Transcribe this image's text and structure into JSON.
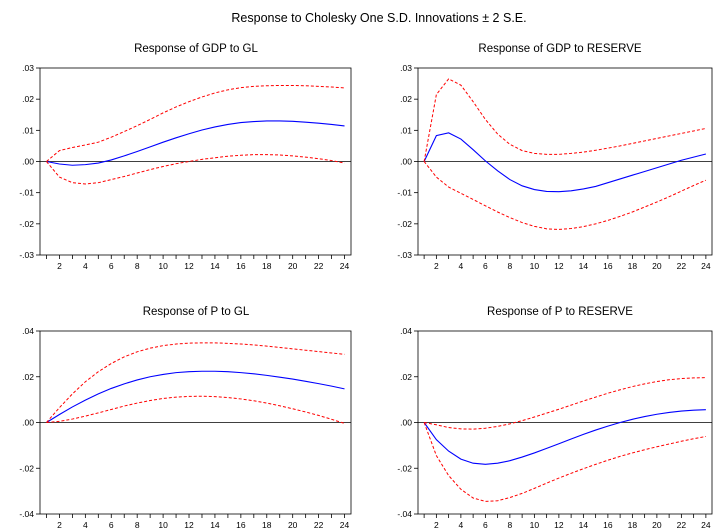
{
  "figure_title": "Response to Cholesky One S.D. Innovations ± 2 S.E.",
  "colors": {
    "response": "#0000ff",
    "band": "#ff0000",
    "axis": "#000000"
  },
  "chart_data": [
    {
      "type": "line",
      "title": "Response of GDP to GL",
      "ylim": [
        -0.03,
        0.03
      ],
      "yticks": [
        ".03",
        ".02",
        ".01",
        ".00",
        "-.01",
        "-.02",
        "-.03"
      ],
      "yticks_values": [
        0.03,
        0.02,
        0.01,
        0.0,
        -0.01,
        -0.02,
        -0.03
      ],
      "xlim": [
        0.5,
        24.5
      ],
      "xticks": [
        "2",
        "4",
        "6",
        "8",
        "10",
        "12",
        "14",
        "16",
        "18",
        "20",
        "22",
        "24"
      ],
      "x": [
        1,
        2,
        3,
        4,
        5,
        6,
        7,
        8,
        9,
        10,
        11,
        12,
        13,
        14,
        15,
        16,
        17,
        18,
        19,
        20,
        21,
        22,
        23,
        24
      ],
      "series": [
        {
          "role": "response",
          "values": [
            0.0,
            -0.0008,
            -0.0012,
            -0.001,
            -0.0005,
            0.0005,
            0.0018,
            0.0032,
            0.0047,
            0.0062,
            0.0076,
            0.0089,
            0.0101,
            0.0111,
            0.0119,
            0.0125,
            0.0128,
            0.013,
            0.013,
            0.0129,
            0.0126,
            0.0123,
            0.0119,
            0.0114
          ]
        },
        {
          "role": "upper",
          "values": [
            0.0,
            0.0035,
            0.0045,
            0.0053,
            0.0062,
            0.0078,
            0.0096,
            0.0115,
            0.0135,
            0.0156,
            0.0175,
            0.0192,
            0.0207,
            0.022,
            0.023,
            0.0237,
            0.0241,
            0.0243,
            0.0244,
            0.0244,
            0.0243,
            0.0241,
            0.0239,
            0.0236
          ]
        },
        {
          "role": "lower",
          "values": [
            0.0,
            -0.005,
            -0.0068,
            -0.0072,
            -0.0068,
            -0.0058,
            -0.0048,
            -0.0037,
            -0.0026,
            -0.0016,
            -0.0007,
            0.0,
            0.0007,
            0.0012,
            0.0017,
            0.002,
            0.0022,
            0.0022,
            0.0021,
            0.0018,
            0.0014,
            0.0009,
            0.0003,
            -0.0005
          ]
        }
      ]
    },
    {
      "type": "line",
      "title": "Response of GDP to RESERVE",
      "ylim": [
        -0.03,
        0.03
      ],
      "yticks": [
        ".03",
        ".02",
        ".01",
        ".00",
        "-.01",
        "-.02",
        "-.03"
      ],
      "yticks_values": [
        0.03,
        0.02,
        0.01,
        0.0,
        -0.01,
        -0.02,
        -0.03
      ],
      "xlim": [
        0.5,
        24.5
      ],
      "xticks": [
        "2",
        "4",
        "6",
        "8",
        "10",
        "12",
        "14",
        "16",
        "18",
        "20",
        "22",
        "24"
      ],
      "x": [
        1,
        2,
        3,
        4,
        5,
        6,
        7,
        8,
        9,
        10,
        11,
        12,
        13,
        14,
        15,
        16,
        17,
        18,
        19,
        20,
        21,
        22,
        23,
        24
      ],
      "series": [
        {
          "role": "response",
          "values": [
            0.0,
            0.0083,
            0.0092,
            0.0072,
            0.0038,
            0.0002,
            -0.003,
            -0.0058,
            -0.0078,
            -0.009,
            -0.0096,
            -0.0097,
            -0.0094,
            -0.0088,
            -0.008,
            -0.0068,
            -0.0056,
            -0.0044,
            -0.0032,
            -0.002,
            -0.0008,
            0.0004,
            0.0014,
            0.0024
          ]
        },
        {
          "role": "upper",
          "values": [
            0.0,
            0.0215,
            0.0265,
            0.0245,
            0.0192,
            0.0135,
            0.0088,
            0.0055,
            0.0035,
            0.0026,
            0.0023,
            0.0023,
            0.0026,
            0.003,
            0.0036,
            0.0043,
            0.005,
            0.0058,
            0.0066,
            0.0074,
            0.0082,
            0.009,
            0.0098,
            0.0106
          ]
        },
        {
          "role": "lower",
          "values": [
            0.0,
            -0.005,
            -0.0082,
            -0.0102,
            -0.0122,
            -0.0142,
            -0.0162,
            -0.018,
            -0.0196,
            -0.0208,
            -0.0216,
            -0.0218,
            -0.0215,
            -0.0209,
            -0.02,
            -0.0189,
            -0.0176,
            -0.0162,
            -0.0146,
            -0.013,
            -0.0113,
            -0.0095,
            -0.0077,
            -0.006
          ]
        }
      ]
    },
    {
      "type": "line",
      "title": "Response of P to GL",
      "ylim": [
        -0.04,
        0.04
      ],
      "yticks": [
        ".04",
        ".02",
        ".00",
        "-.02",
        "-.04"
      ],
      "yticks_values": [
        0.04,
        0.02,
        0.0,
        -0.02,
        -0.04
      ],
      "xlim": [
        0.5,
        24.5
      ],
      "xticks": [
        "2",
        "4",
        "6",
        "8",
        "10",
        "12",
        "14",
        "16",
        "18",
        "20",
        "22",
        "24"
      ],
      "x": [
        1,
        2,
        3,
        4,
        5,
        6,
        7,
        8,
        9,
        10,
        11,
        12,
        13,
        14,
        15,
        16,
        17,
        18,
        19,
        20,
        21,
        22,
        23,
        24
      ],
      "series": [
        {
          "role": "response",
          "values": [
            0.0,
            0.0035,
            0.0068,
            0.0098,
            0.0125,
            0.0149,
            0.0169,
            0.0186,
            0.02,
            0.021,
            0.0218,
            0.0222,
            0.0224,
            0.0224,
            0.0222,
            0.0218,
            0.0213,
            0.0206,
            0.0198,
            0.019,
            0.018,
            0.017,
            0.0159,
            0.0147
          ]
        },
        {
          "role": "upper",
          "values": [
            0.0,
            0.0065,
            0.0125,
            0.0178,
            0.0222,
            0.0258,
            0.0287,
            0.0309,
            0.0325,
            0.0336,
            0.0343,
            0.0347,
            0.0348,
            0.0348,
            0.0346,
            0.0343,
            0.0339,
            0.0334,
            0.0328,
            0.0322,
            0.0316,
            0.031,
            0.0304,
            0.0298
          ]
        },
        {
          "role": "lower",
          "values": [
            0.0,
            0.0005,
            0.0015,
            0.0028,
            0.0042,
            0.0057,
            0.0072,
            0.0085,
            0.0096,
            0.0105,
            0.0111,
            0.0114,
            0.0115,
            0.0113,
            0.0109,
            0.0103,
            0.0095,
            0.0085,
            0.0073,
            0.006,
            0.0046,
            0.0031,
            0.0014,
            -0.0004
          ]
        }
      ]
    },
    {
      "type": "line",
      "title": "Response of P to RESERVE",
      "ylim": [
        -0.04,
        0.04
      ],
      "yticks": [
        ".04",
        ".02",
        ".00",
        "-.02",
        "-.04"
      ],
      "yticks_values": [
        0.04,
        0.02,
        0.0,
        -0.02,
        -0.04
      ],
      "xlim": [
        0.5,
        24.5
      ],
      "xticks": [
        "2",
        "4",
        "6",
        "8",
        "10",
        "12",
        "14",
        "16",
        "18",
        "20",
        "22",
        "24"
      ],
      "x": [
        1,
        2,
        3,
        4,
        5,
        6,
        7,
        8,
        9,
        10,
        11,
        12,
        13,
        14,
        15,
        16,
        17,
        18,
        19,
        20,
        21,
        22,
        23,
        24
      ],
      "series": [
        {
          "role": "response",
          "values": [
            0.0,
            -0.0075,
            -0.0125,
            -0.016,
            -0.0178,
            -0.0183,
            -0.0178,
            -0.0167,
            -0.0151,
            -0.0133,
            -0.0113,
            -0.0093,
            -0.0072,
            -0.0052,
            -0.0033,
            -0.0016,
            0.0,
            0.0014,
            0.0026,
            0.0036,
            0.0044,
            0.005,
            0.0054,
            0.0056
          ]
        },
        {
          "role": "upper",
          "values": [
            0.0,
            -0.001,
            -0.0022,
            -0.0028,
            -0.0029,
            -0.0025,
            -0.0017,
            -0.0006,
            0.0008,
            0.0024,
            0.0041,
            0.0058,
            0.0076,
            0.0094,
            0.0111,
            0.0128,
            0.0143,
            0.0157,
            0.0169,
            0.0179,
            0.0187,
            0.0192,
            0.0195,
            0.0196
          ]
        },
        {
          "role": "lower",
          "values": [
            0.0,
            -0.0145,
            -0.0232,
            -0.0292,
            -0.033,
            -0.0345,
            -0.0342,
            -0.0328,
            -0.031,
            -0.0288,
            -0.0265,
            -0.0243,
            -0.0222,
            -0.0202,
            -0.0183,
            -0.0165,
            -0.0148,
            -0.0133,
            -0.0119,
            -0.0106,
            -0.0094,
            -0.0082,
            -0.0071,
            -0.0061
          ]
        }
      ]
    }
  ]
}
